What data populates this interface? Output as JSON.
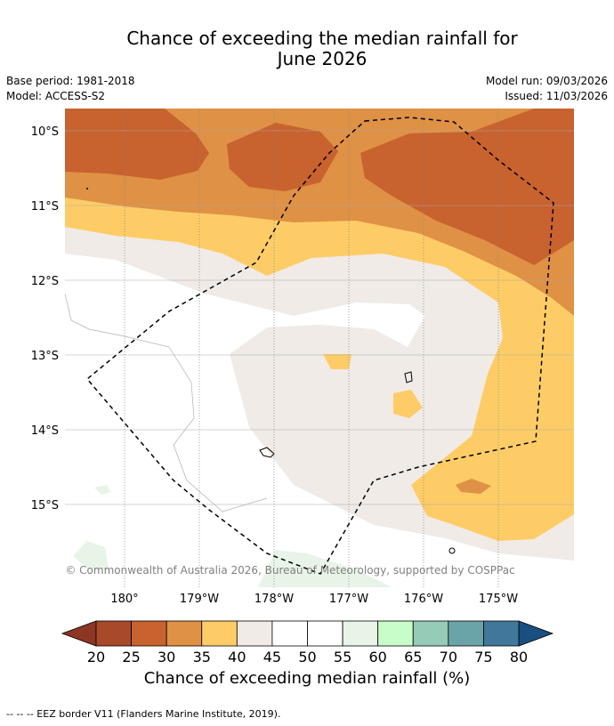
{
  "title_line1": "Chance of exceeding the median rainfall for",
  "title_line2": "June 2026",
  "meta": {
    "base_period": "Base period: 1981-2018",
    "model": "Model: ACCESS-S2",
    "model_run": "Model run: 09/03/2026",
    "issued": "Issued: 11/03/2026"
  },
  "copyright": "© Commonwealth of Australia 2026, Bureau of Meteorology, supported by COSPPac",
  "colorbar_label": "Chance of exceeding median rainfall (%)",
  "footnote": "--  --  -- EEZ border V11 (Flanders Marine Institute, 2019).",
  "colors": {
    "c20_25": "#a84a2a",
    "c25_30": "#c8622f",
    "c30_35": "#df9145",
    "c35_40": "#fecc66",
    "c40_45": "#f0ebe6",
    "c45_50": "#ffffff",
    "c50_55": "#ffffff",
    "c55_60": "#e8f4e8",
    "c60_65": "#c8fcc8",
    "c65_70": "#96cbb8",
    "c70_75": "#6aa4a8",
    "c75_80": "#40779a",
    "under": "#8c3623",
    "over": "#1a4f82"
  },
  "chart_data": {
    "type": "heatmap",
    "title": "Chance of exceeding the median rainfall for June 2026",
    "xlabel": "",
    "ylabel": "",
    "x_ticks": [
      "180°",
      "179°W",
      "178°W",
      "177°W",
      "176°W",
      "175°W"
    ],
    "x_values": [
      180,
      181,
      182,
      183,
      184,
      185
    ],
    "y_ticks": [
      "10°S",
      "11°S",
      "12°S",
      "13°S",
      "14°S",
      "15°S"
    ],
    "y_values": [
      -10,
      -11,
      -12,
      -13,
      -14,
      -15
    ],
    "lon_range": [
      179.2,
      186.0
    ],
    "lat_range": [
      -9.7,
      -16.1
    ],
    "colorbar": {
      "label": "Chance of exceeding median rainfall (%)",
      "ticks": [
        20,
        25,
        30,
        35,
        40,
        45,
        50,
        55,
        60,
        65,
        70,
        75,
        80
      ],
      "extend": "both"
    },
    "regions_description": [
      {
        "range": "25-30",
        "area": "northern band north of 10.8°S"
      },
      {
        "range": "30-35",
        "area": "band around 10.5°S-11°S and east of 176°W"
      },
      {
        "range": "35-40",
        "area": "band near 11.2°S-11.8°S and east of 175.5°W"
      },
      {
        "range": "40-45",
        "area": "central region between 12°S and 15.7°S"
      },
      {
        "range": "45-55",
        "area": "south-west"
      }
    ]
  }
}
